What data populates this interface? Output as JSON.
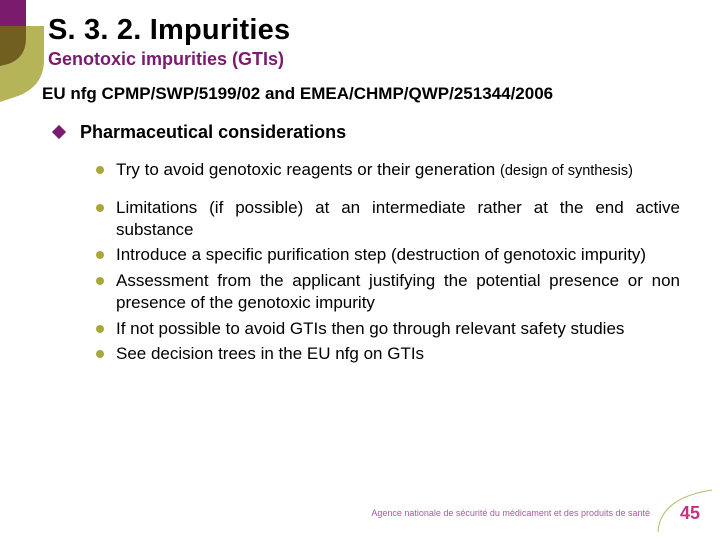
{
  "title": "S. 3. 2. Impurities",
  "subtitle": "Genotoxic impurities (GTIs)",
  "reference": "EU nfg CPMP/SWP/5199/02 and EMEA/CHMP/QWP/251344/2006",
  "section_heading": "Pharmaceutical considerations",
  "bullets": [
    {
      "text": "Try to avoid genotoxic reagents or their generation",
      "note": "(design of synthesis)",
      "top_gap": false
    },
    {
      "text": "Limitations (if possible) at an intermediate rather at the end active substance",
      "note": "",
      "top_gap": true
    },
    {
      "text": "Introduce a specific purification step (destruction of genotoxic impurity)",
      "note": "",
      "top_gap": false
    },
    {
      "text": "Assessment from the applicant justifying the potential presence or non presence of the genotoxic impurity",
      "note": "",
      "top_gap": false
    },
    {
      "text": "If not possible to avoid GTIs then go through relevant safety studies",
      "note": "",
      "top_gap": false
    },
    {
      "text": "See decision trees in the EU nfg on GTIs",
      "note": "",
      "top_gap": false
    }
  ],
  "footer": {
    "agency": "Agence nationale de sécurité du médicament et des produits de santé",
    "page": "45"
  },
  "colors": {
    "title": "#000000",
    "subtitle": "#7a1b6d",
    "diamond": "#7a1b6d",
    "bullet_dot": "#a8a73c",
    "page_num": "#c53282",
    "agency": "#a55c9e",
    "corner_a": "#7a1b6d",
    "corner_b": "#a8a73c",
    "background": "#ffffff"
  }
}
